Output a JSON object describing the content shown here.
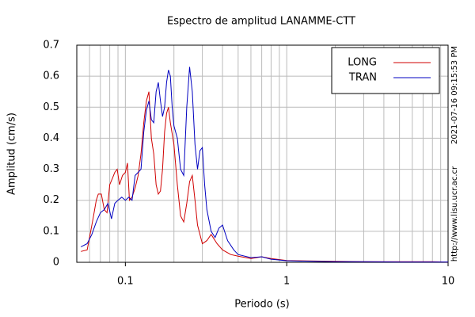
{
  "chart_data": {
    "type": "line",
    "title": "Espectro de amplitud LANAMME-CTT",
    "x_label": "Periodo (s)",
    "y_label": "Amplitud (cm/s)",
    "annotations": [
      "2021-07-16 09:15:53 PM",
      "http://www.lisu.ucr.ac.cr"
    ],
    "xscale": "log",
    "xlim": [
      0.05,
      10
    ],
    "ylim": [
      0,
      0.7
    ],
    "xticks": [
      0.1,
      1,
      10
    ],
    "xminorticks": [
      0.06,
      0.07,
      0.08,
      0.09,
      0.2,
      0.3,
      0.4,
      0.5,
      0.6,
      0.7,
      0.8,
      0.9,
      2,
      3,
      4,
      5,
      6,
      7,
      8,
      9
    ],
    "yticks": [
      0,
      0.1,
      0.2,
      0.3,
      0.4,
      0.5,
      0.6,
      0.7
    ],
    "grid": true,
    "legend": "upper right",
    "series": [
      {
        "name": "LONG",
        "color": "#d00000",
        "x": [
          0.053,
          0.058,
          0.06,
          0.063,
          0.066,
          0.068,
          0.071,
          0.074,
          0.077,
          0.08,
          0.083,
          0.086,
          0.089,
          0.092,
          0.096,
          0.1,
          0.103,
          0.106,
          0.11,
          0.115,
          0.12,
          0.125,
          0.13,
          0.135,
          0.14,
          0.145,
          0.15,
          0.155,
          0.16,
          0.165,
          0.17,
          0.175,
          0.18,
          0.185,
          0.19,
          0.2,
          0.21,
          0.22,
          0.23,
          0.24,
          0.25,
          0.26,
          0.27,
          0.28,
          0.3,
          0.32,
          0.34,
          0.37,
          0.4,
          0.45,
          0.5,
          0.6,
          0.7,
          0.8,
          1,
          1.5,
          2,
          3,
          5,
          8,
          10
        ],
        "values": [
          0.035,
          0.04,
          0.08,
          0.14,
          0.2,
          0.22,
          0.22,
          0.17,
          0.16,
          0.25,
          0.27,
          0.29,
          0.3,
          0.25,
          0.28,
          0.29,
          0.32,
          0.2,
          0.21,
          0.24,
          0.28,
          0.35,
          0.45,
          0.52,
          0.55,
          0.4,
          0.35,
          0.25,
          0.22,
          0.23,
          0.3,
          0.42,
          0.48,
          0.5,
          0.45,
          0.38,
          0.25,
          0.15,
          0.13,
          0.19,
          0.26,
          0.28,
          0.2,
          0.12,
          0.06,
          0.07,
          0.09,
          0.06,
          0.04,
          0.025,
          0.02,
          0.012,
          0.018,
          0.012,
          0.006,
          0.004,
          0.003,
          0.002,
          0.002,
          0.002,
          0.001
        ]
      },
      {
        "name": "TRAN",
        "color": "#0000c0",
        "x": [
          0.053,
          0.058,
          0.062,
          0.066,
          0.07,
          0.074,
          0.078,
          0.082,
          0.086,
          0.09,
          0.095,
          0.1,
          0.105,
          0.11,
          0.115,
          0.12,
          0.125,
          0.13,
          0.135,
          0.14,
          0.145,
          0.15,
          0.155,
          0.16,
          0.165,
          0.17,
          0.175,
          0.18,
          0.185,
          0.19,
          0.195,
          0.2,
          0.21,
          0.22,
          0.23,
          0.24,
          0.25,
          0.26,
          0.27,
          0.28,
          0.29,
          0.3,
          0.31,
          0.32,
          0.34,
          0.36,
          0.38,
          0.4,
          0.43,
          0.47,
          0.5,
          0.6,
          0.7,
          0.8,
          1,
          1.5,
          2,
          3,
          5,
          10
        ],
        "values": [
          0.05,
          0.06,
          0.09,
          0.13,
          0.16,
          0.17,
          0.19,
          0.14,
          0.19,
          0.2,
          0.21,
          0.2,
          0.21,
          0.2,
          0.28,
          0.29,
          0.3,
          0.42,
          0.49,
          0.52,
          0.46,
          0.45,
          0.55,
          0.58,
          0.52,
          0.47,
          0.5,
          0.58,
          0.62,
          0.6,
          0.5,
          0.44,
          0.4,
          0.3,
          0.28,
          0.5,
          0.63,
          0.55,
          0.38,
          0.3,
          0.36,
          0.37,
          0.25,
          0.17,
          0.1,
          0.08,
          0.11,
          0.12,
          0.07,
          0.04,
          0.025,
          0.015,
          0.018,
          0.01,
          0.005,
          0.003,
          0.002,
          0.002,
          0.001,
          0.001
        ]
      }
    ]
  }
}
